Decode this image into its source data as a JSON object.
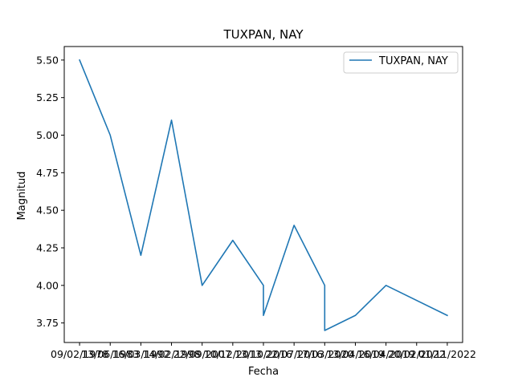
{
  "chart_data": {
    "type": "line",
    "title": "TUXPAN, NAY",
    "xlabel": "Fecha",
    "ylabel": "Magnitud",
    "ylim": [
      3.62,
      5.59
    ],
    "yticks": [
      3.75,
      4.0,
      4.25,
      4.5,
      4.75,
      5.0,
      5.25,
      5.5
    ],
    "ytick_labels": [
      "3.75",
      "4.00",
      "4.25",
      "4.50",
      "4.75",
      "5.00",
      "5.25",
      "5.50"
    ],
    "xtick_labels": [
      "09/02/1978",
      "13/06/1983",
      "16/03/1992",
      "14/02/1998",
      "22/09/2007",
      "10/12/2013",
      "13/10/2016",
      "22/07/2016",
      "17/03/2020",
      "13/04/2019",
      "16/04/2019",
      "20/02/2022",
      "01/11/2022"
    ],
    "legend": {
      "entries": [
        "TUXPAN, NAY"
      ],
      "position": "upper right"
    },
    "grid": false,
    "color": "#1f77b4",
    "series": [
      {
        "name": "TUXPAN, NAY",
        "points": [
          {
            "x": 0,
            "y": 5.5
          },
          {
            "x": 1,
            "y": 5.0
          },
          {
            "x": 2,
            "y": 4.2
          },
          {
            "x": 3,
            "y": 5.1
          },
          {
            "x": 4,
            "y": 4.0
          },
          {
            "x": 5,
            "y": 4.3
          },
          {
            "x": 6,
            "y": 4.0
          },
          {
            "x": 6,
            "y": 3.8
          },
          {
            "x": 7,
            "y": 4.4
          },
          {
            "x": 8,
            "y": 4.0
          },
          {
            "x": 8,
            "y": 3.7
          },
          {
            "x": 9,
            "y": 3.8
          },
          {
            "x": 10,
            "y": 4.0
          },
          {
            "x": 12,
            "y": 3.8
          }
        ]
      }
    ]
  }
}
